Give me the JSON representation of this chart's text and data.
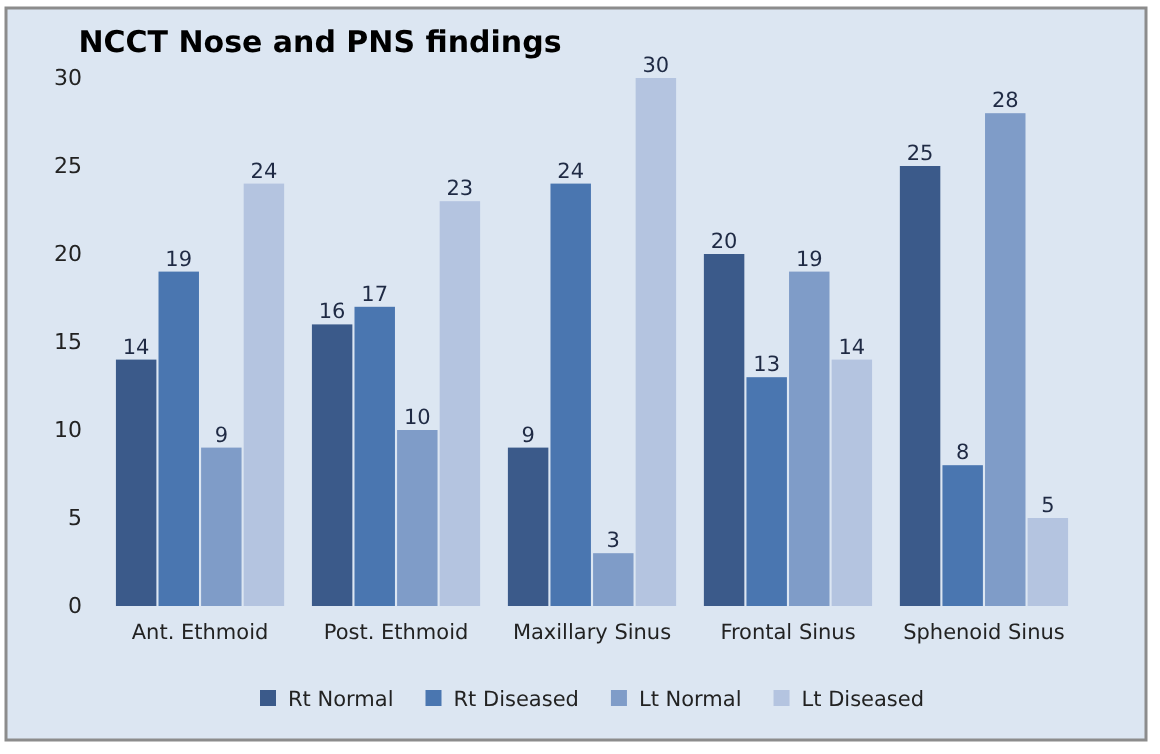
{
  "chart_data": {
    "type": "bar",
    "title": "NCCT Nose and PNS findings",
    "categories": [
      "Ant. Ethmoid",
      "Post. Ethmoid",
      "Maxillary Sinus",
      "Frontal Sinus",
      "Sphenoid Sinus"
    ],
    "series": [
      {
        "name": "Rt Normal",
        "color": "#3b5a8a",
        "values": [
          14,
          16,
          9,
          20,
          25
        ]
      },
      {
        "name": "Rt Diseased",
        "color": "#4a76b0",
        "values": [
          19,
          17,
          24,
          13,
          8
        ]
      },
      {
        "name": "Lt Normal",
        "color": "#7f9cc8",
        "values": [
          9,
          10,
          3,
          19,
          28
        ]
      },
      {
        "name": "Lt Diseased",
        "color": "#b4c4e0",
        "values": [
          24,
          23,
          30,
          14,
          5
        ]
      }
    ],
    "ylim": [
      0,
      30
    ],
    "yticks": [
      0,
      5,
      10,
      15,
      20,
      25,
      30
    ],
    "grid": false,
    "legend": "bottom",
    "data_labels": true
  }
}
